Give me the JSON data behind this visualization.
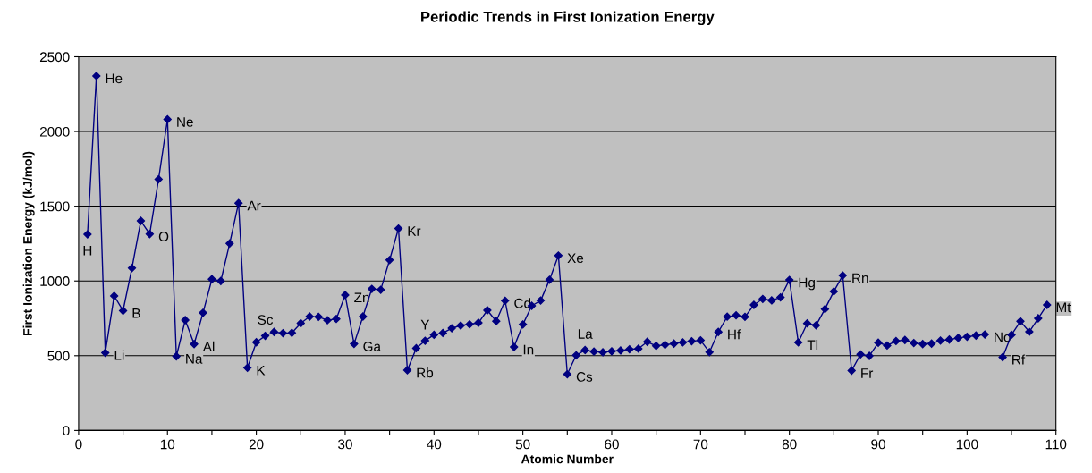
{
  "chart_data": {
    "type": "line",
    "title": "Periodic Trends in First Ionization Energy",
    "xlabel": "Atomic Number",
    "ylabel": "First Ionization Energy (kJ/mol)",
    "x": [
      1,
      2,
      3,
      4,
      5,
      6,
      7,
      8,
      9,
      10,
      11,
      12,
      13,
      14,
      15,
      16,
      17,
      18,
      19,
      20,
      21,
      22,
      23,
      24,
      25,
      26,
      27,
      28,
      29,
      30,
      31,
      32,
      33,
      34,
      35,
      36,
      37,
      38,
      39,
      40,
      41,
      42,
      43,
      44,
      45,
      46,
      47,
      48,
      49,
      50,
      51,
      52,
      53,
      54,
      55,
      56,
      57,
      58,
      59,
      60,
      61,
      62,
      63,
      64,
      65,
      66,
      67,
      68,
      69,
      70,
      71,
      72,
      73,
      74,
      75,
      76,
      77,
      78,
      79,
      80,
      81,
      82,
      83,
      84,
      85,
      86,
      87,
      88,
      89,
      90,
      91,
      92,
      93,
      94,
      95,
      96,
      97,
      98,
      99,
      100,
      101,
      102,
      103,
      104,
      105,
      106,
      107,
      108,
      109
    ],
    "series": [
      {
        "color": "#000080",
        "values": [
          1312,
          2372,
          520,
          900,
          801,
          1086,
          1402,
          1314,
          1681,
          2081,
          496,
          738,
          578,
          787,
          1012,
          1000,
          1251,
          1521,
          419,
          590,
          633,
          659,
          651,
          653,
          717,
          762,
          760,
          737,
          746,
          906,
          579,
          762,
          947,
          941,
          1140,
          1351,
          403,
          550,
          600,
          640,
          652,
          684,
          702,
          710,
          720,
          804,
          731,
          868,
          558,
          709,
          834,
          869,
          1008,
          1170,
          376,
          503,
          538,
          528,
          523,
          530,
          535,
          543,
          547,
          593,
          566,
          573,
          581,
          589,
          597,
          603,
          524,
          659,
          761,
          770,
          760,
          840,
          880,
          870,
          890,
          1007,
          589,
          716,
          703,
          812,
          930,
          1037,
          400,
          509,
          499,
          587,
          568,
          598,
          605,
          585,
          578,
          581,
          601,
          608,
          619,
          627,
          635,
          642,
          null,
          490,
          640,
          730,
          660,
          750,
          840
        ]
      }
    ],
    "xlim": [
      0,
      110
    ],
    "ylim": [
      0,
      2500
    ],
    "xticks": [
      0,
      {
        "value": 5,
        "label": null
      },
      10,
      {
        "value": 15,
        "label": null
      },
      20,
      {
        "value": 25,
        "label": null
      },
      30,
      {
        "value": 35,
        "label": null
      },
      40,
      {
        "value": 45,
        "label": null
      },
      50,
      {
        "value": 55,
        "label": null
      },
      60,
      {
        "value": 65,
        "label": null
      },
      70,
      {
        "value": 75,
        "label": null
      },
      80,
      {
        "value": 85,
        "label": null
      },
      90,
      {
        "value": 95,
        "label": null
      },
      100,
      {
        "value": 105,
        "label": null
      },
      110
    ],
    "yticks": [
      0,
      500,
      1000,
      1500,
      2000,
      2500
    ],
    "grid": "y",
    "marker": "diamond",
    "line_style": "solid",
    "annotations": [
      {
        "text": "H",
        "x": 1,
        "y": 1312
      },
      {
        "text": "He",
        "x": 2,
        "y": 2372
      },
      {
        "text": "Li",
        "x": 3,
        "y": 520
      },
      {
        "text": "B",
        "x": 5,
        "y": 801
      },
      {
        "text": "O",
        "x": 8,
        "y": 1314
      },
      {
        "text": "Ne",
        "x": 10,
        "y": 2081
      },
      {
        "text": "Na",
        "x": 11,
        "y": 496
      },
      {
        "text": "Al",
        "x": 13,
        "y": 578
      },
      {
        "text": "Ar",
        "x": 18,
        "y": 1521
      },
      {
        "text": "K",
        "x": 19,
        "y": 419
      },
      {
        "text": "Sc",
        "x": 21,
        "y": 633
      },
      {
        "text": "Zn",
        "x": 30,
        "y": 906
      },
      {
        "text": "Ga",
        "x": 31,
        "y": 579
      },
      {
        "text": "Kr",
        "x": 36,
        "y": 1351
      },
      {
        "text": "Rb",
        "x": 37,
        "y": 403
      },
      {
        "text": "Y",
        "x": 39,
        "y": 600
      },
      {
        "text": "Cd",
        "x": 48,
        "y": 868
      },
      {
        "text": "In",
        "x": 49,
        "y": 558
      },
      {
        "text": "Xe",
        "x": 54,
        "y": 1170
      },
      {
        "text": "Cs",
        "x": 55,
        "y": 376
      },
      {
        "text": "La",
        "x": 57,
        "y": 538
      },
      {
        "text": "Hf",
        "x": 72,
        "y": 659
      },
      {
        "text": "Hg",
        "x": 80,
        "y": 1007
      },
      {
        "text": "Tl",
        "x": 81,
        "y": 589
      },
      {
        "text": "Rn",
        "x": 86,
        "y": 1037
      },
      {
        "text": "Fr",
        "x": 87,
        "y": 400
      },
      {
        "text": "No",
        "x": 102,
        "y": 642
      },
      {
        "text": "Rf",
        "x": 104,
        "y": 490
      },
      {
        "text": "Mt",
        "x": 109,
        "y": 840
      }
    ]
  }
}
